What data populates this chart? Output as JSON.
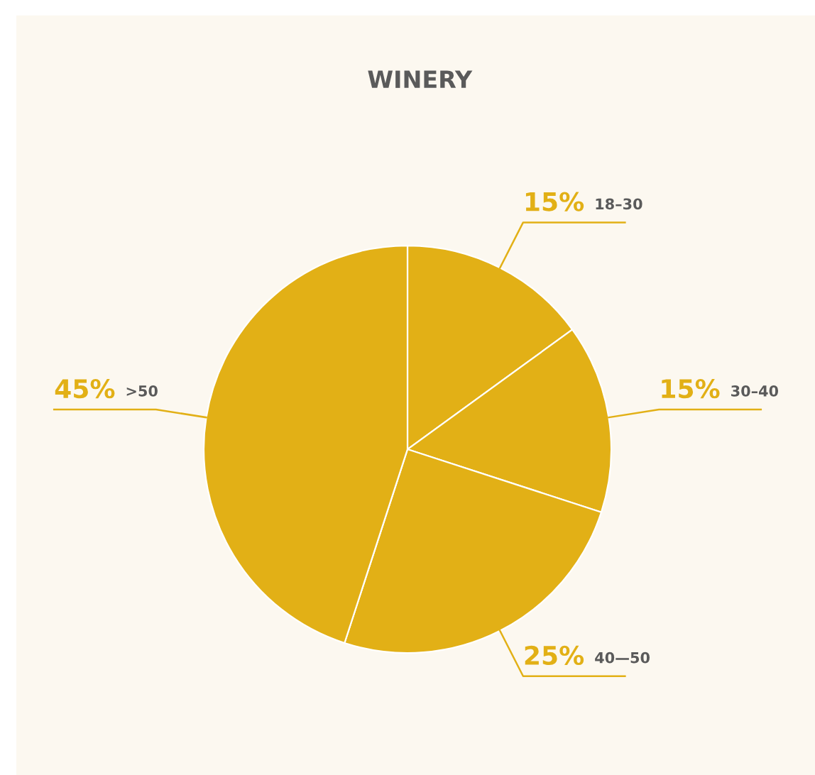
{
  "chart_data": {
    "type": "pie",
    "title": "WINERY",
    "categories": [
      "18–30",
      "30–40",
      "40—50",
      ">50"
    ],
    "values": [
      15,
      15,
      25,
      45
    ],
    "value_labels": [
      "15%",
      "15%",
      "25%",
      "45%"
    ],
    "colors": [
      "#e2b016",
      "#e2b016",
      "#e2b016",
      "#e2b016"
    ],
    "legend": false
  }
}
